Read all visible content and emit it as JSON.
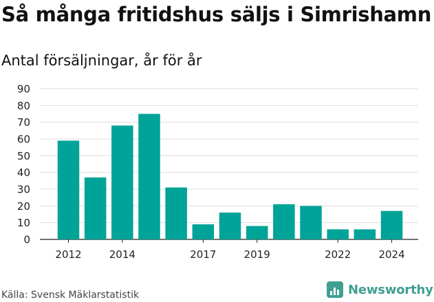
{
  "title": "Så många fritidshus säljs i Simrishamn",
  "subtitle": "Antal försäljningar, år för år",
  "source": "Källa: Svensk Mäklarstatistik",
  "brand": {
    "name": "Newsworthy",
    "icon": "bar-chart-logo-icon",
    "color": "#3f9f92"
  },
  "chart_data": {
    "type": "bar",
    "categories": [
      "2012",
      "2013",
      "2014",
      "2015",
      "2016",
      "2017",
      "2018",
      "2019",
      "2020",
      "2021",
      "2022",
      "2023",
      "2024"
    ],
    "values": [
      59,
      37,
      68,
      75,
      31,
      9,
      16,
      8,
      21,
      20,
      6,
      6,
      17
    ],
    "x_tick_labels": [
      "2012",
      "2014",
      "2017",
      "2019",
      "2022",
      "2024"
    ],
    "y_ticks": [
      0,
      10,
      20,
      30,
      40,
      50,
      60,
      70,
      80,
      90
    ],
    "ylim": [
      0,
      90
    ],
    "grid": true,
    "bar_color": "#00a398"
  }
}
